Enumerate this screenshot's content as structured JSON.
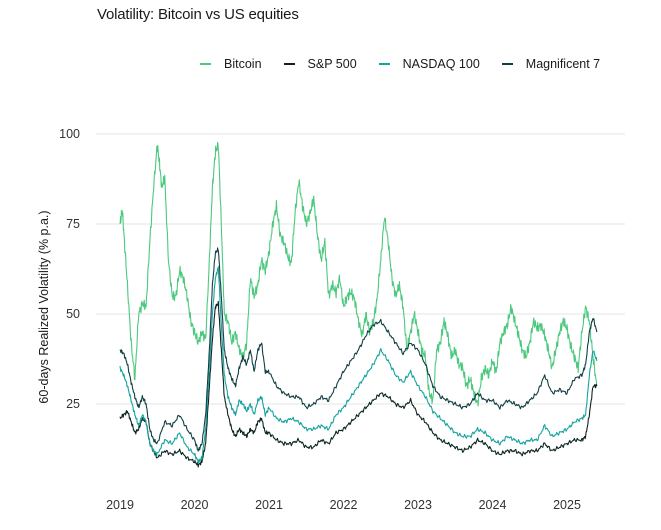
{
  "chart_data": {
    "type": "line",
    "title": "Volatility: Bitcoin vs US equities",
    "xlabel": "",
    "ylabel": "60-days Realized Volatility (% p.a.)",
    "xlim": [
      2019.0,
      2025.45
    ],
    "ylim": [
      0,
      100
    ],
    "grid": true,
    "legend_position": "top",
    "x_ticks": [
      2019,
      2020,
      2021,
      2022,
      2023,
      2024,
      2025
    ],
    "y_ticks": [
      25,
      50,
      75,
      100
    ],
    "series": [
      {
        "name": "Bitcoin",
        "color": "#4cc97e",
        "x": [
          2019.0,
          2019.03,
          2019.06,
          2019.1,
          2019.15,
          2019.2,
          2019.25,
          2019.3,
          2019.35,
          2019.4,
          2019.45,
          2019.5,
          2019.53,
          2019.56,
          2019.6,
          2019.65,
          2019.7,
          2019.75,
          2019.8,
          2019.85,
          2019.9,
          2019.95,
          2020.0,
          2020.05,
          2020.1,
          2020.15,
          2020.2,
          2020.24,
          2020.28,
          2020.32,
          2020.36,
          2020.4,
          2020.45,
          2020.5,
          2020.55,
          2020.6,
          2020.65,
          2020.7,
          2020.75,
          2020.8,
          2020.85,
          2020.9,
          2020.95,
          2021.0,
          2021.05,
          2021.1,
          2021.15,
          2021.2,
          2021.25,
          2021.3,
          2021.35,
          2021.4,
          2021.45,
          2021.5,
          2021.55,
          2021.6,
          2021.65,
          2021.7,
          2021.75,
          2021.8,
          2021.85,
          2021.9,
          2021.95,
          2022.0,
          2022.05,
          2022.1,
          2022.15,
          2022.2,
          2022.25,
          2022.3,
          2022.35,
          2022.4,
          2022.45,
          2022.5,
          2022.55,
          2022.6,
          2022.65,
          2022.7,
          2022.75,
          2022.8,
          2022.85,
          2022.9,
          2022.95,
          2023.0,
          2023.05,
          2023.1,
          2023.15,
          2023.2,
          2023.25,
          2023.3,
          2023.35,
          2023.4,
          2023.45,
          2023.5,
          2023.55,
          2023.6,
          2023.65,
          2023.7,
          2023.75,
          2023.8,
          2023.85,
          2023.9,
          2023.95,
          2024.0,
          2024.05,
          2024.1,
          2024.15,
          2024.2,
          2024.25,
          2024.3,
          2024.35,
          2024.4,
          2024.45,
          2024.5,
          2024.55,
          2024.6,
          2024.65,
          2024.7,
          2024.75,
          2024.8,
          2024.85,
          2024.9,
          2024.95,
          2025.0,
          2025.05,
          2025.1,
          2025.15,
          2025.2,
          2025.25,
          2025.3,
          2025.35,
          2025.4
        ],
        "values": [
          75,
          79,
          70,
          58,
          42,
          32,
          50,
          53,
          52,
          70,
          85,
          97,
          92,
          85,
          88,
          65,
          55,
          55,
          62,
          60,
          55,
          48,
          45,
          42,
          45,
          43,
          65,
          85,
          95,
          97,
          75,
          50,
          48,
          42,
          45,
          40,
          38,
          42,
          60,
          55,
          58,
          65,
          62,
          67,
          75,
          80,
          72,
          70,
          66,
          64,
          78,
          87,
          80,
          75,
          78,
          82,
          72,
          65,
          70,
          55,
          58,
          56,
          60,
          52,
          55,
          56,
          54,
          48,
          44,
          50,
          45,
          48,
          54,
          65,
          77,
          70,
          60,
          55,
          58,
          52,
          40,
          45,
          50,
          45,
          40,
          38,
          28,
          26,
          40,
          42,
          48,
          44,
          38,
          40,
          36,
          35,
          30,
          32,
          28,
          25,
          32,
          35,
          33,
          37,
          34,
          42,
          45,
          47,
          52,
          48,
          44,
          40,
          38,
          42,
          48,
          46,
          47,
          44,
          40,
          35,
          40,
          45,
          48,
          46,
          41,
          38,
          35,
          45,
          52,
          48,
          38,
          30
        ]
      },
      {
        "name": "S&P 500",
        "color": "#0c2523",
        "x": [
          2019.0,
          2019.05,
          2019.1,
          2019.15,
          2019.2,
          2019.25,
          2019.3,
          2019.35,
          2019.4,
          2019.45,
          2019.5,
          2019.6,
          2019.7,
          2019.8,
          2019.9,
          2020.0,
          2020.05,
          2020.1,
          2020.15,
          2020.2,
          2020.24,
          2020.28,
          2020.32,
          2020.36,
          2020.4,
          2020.45,
          2020.5,
          2020.55,
          2020.6,
          2020.65,
          2020.7,
          2020.75,
          2020.8,
          2020.85,
          2020.9,
          2020.95,
          2021.0,
          2021.1,
          2021.2,
          2021.3,
          2021.4,
          2021.5,
          2021.6,
          2021.7,
          2021.8,
          2021.9,
          2022.0,
          2022.1,
          2022.2,
          2022.3,
          2022.4,
          2022.5,
          2022.6,
          2022.7,
          2022.8,
          2022.9,
          2023.0,
          2023.1,
          2023.2,
          2023.3,
          2023.4,
          2023.5,
          2023.6,
          2023.7,
          2023.8,
          2023.9,
          2024.0,
          2024.1,
          2024.2,
          2024.3,
          2024.4,
          2024.5,
          2024.6,
          2024.7,
          2024.8,
          2024.9,
          2025.0,
          2025.1,
          2025.2,
          2025.25,
          2025.3,
          2025.35,
          2025.4
        ],
        "values": [
          21,
          22,
          23,
          20,
          17,
          18,
          21,
          20,
          14,
          12,
          10,
          12,
          11,
          12,
          10,
          9,
          8,
          9,
          14,
          30,
          43,
          52,
          53,
          40,
          27,
          22,
          18,
          16,
          18,
          17,
          16,
          18,
          17,
          20,
          21,
          17,
          17,
          15,
          14,
          14,
          15,
          13,
          13,
          15,
          14,
          17,
          18,
          20,
          22,
          24,
          26,
          28,
          27,
          25,
          24,
          26,
          22,
          20,
          17,
          15,
          14,
          13,
          12,
          13,
          15,
          14,
          12,
          11,
          12,
          12,
          11,
          12,
          12,
          14,
          12,
          13,
          14,
          15,
          15,
          16,
          22,
          30,
          30
        ]
      },
      {
        "name": "NASDAQ 100",
        "color": "#16a39e",
        "x": [
          2019.0,
          2019.05,
          2019.1,
          2019.15,
          2019.2,
          2019.25,
          2019.3,
          2019.35,
          2019.4,
          2019.45,
          2019.5,
          2019.6,
          2019.7,
          2019.8,
          2019.9,
          2020.0,
          2020.05,
          2020.1,
          2020.15,
          2020.2,
          2020.24,
          2020.28,
          2020.32,
          2020.36,
          2020.4,
          2020.45,
          2020.5,
          2020.55,
          2020.6,
          2020.65,
          2020.7,
          2020.75,
          2020.8,
          2020.85,
          2020.9,
          2020.95,
          2021.0,
          2021.1,
          2021.2,
          2021.3,
          2021.4,
          2021.5,
          2021.6,
          2021.7,
          2021.8,
          2021.9,
          2022.0,
          2022.1,
          2022.2,
          2022.3,
          2022.4,
          2022.5,
          2022.6,
          2022.7,
          2022.8,
          2022.9,
          2023.0,
          2023.1,
          2023.2,
          2023.3,
          2023.4,
          2023.5,
          2023.6,
          2023.7,
          2023.8,
          2023.9,
          2024.0,
          2024.1,
          2024.2,
          2024.3,
          2024.4,
          2024.5,
          2024.6,
          2024.7,
          2024.8,
          2024.9,
          2025.0,
          2025.1,
          2025.2,
          2025.25,
          2025.3,
          2025.35,
          2025.4
        ],
        "values": [
          35,
          33,
          30,
          26,
          22,
          19,
          22,
          20,
          14,
          12,
          11,
          15,
          14,
          17,
          13,
          11,
          9,
          10,
          18,
          35,
          50,
          60,
          63,
          47,
          33,
          27,
          24,
          22,
          26,
          25,
          23,
          25,
          22,
          26,
          27,
          22,
          24,
          21,
          20,
          21,
          20,
          18,
          18,
          19,
          18,
          22,
          24,
          27,
          30,
          33,
          36,
          40,
          37,
          33,
          31,
          34,
          30,
          27,
          23,
          21,
          19,
          17,
          16,
          16,
          18,
          17,
          15,
          14,
          16,
          15,
          14,
          15,
          15,
          19,
          16,
          17,
          18,
          20,
          21,
          22,
          33,
          40,
          37
        ]
      },
      {
        "name": "Magnificent 7",
        "color": "#123f44",
        "x": [
          2019.0,
          2019.05,
          2019.1,
          2019.15,
          2019.2,
          2019.25,
          2019.3,
          2019.35,
          2019.4,
          2019.45,
          2019.5,
          2019.6,
          2019.7,
          2019.8,
          2019.9,
          2020.0,
          2020.05,
          2020.1,
          2020.15,
          2020.2,
          2020.24,
          2020.28,
          2020.32,
          2020.36,
          2020.4,
          2020.45,
          2020.5,
          2020.55,
          2020.6,
          2020.65,
          2020.7,
          2020.75,
          2020.8,
          2020.85,
          2020.9,
          2020.95,
          2021.0,
          2021.1,
          2021.2,
          2021.3,
          2021.4,
          2021.5,
          2021.6,
          2021.7,
          2021.8,
          2021.9,
          2022.0,
          2022.1,
          2022.2,
          2022.3,
          2022.4,
          2022.5,
          2022.6,
          2022.7,
          2022.8,
          2022.9,
          2023.0,
          2023.1,
          2023.2,
          2023.3,
          2023.4,
          2023.5,
          2023.6,
          2023.7,
          2023.8,
          2023.9,
          2024.0,
          2024.1,
          2024.2,
          2024.3,
          2024.4,
          2024.5,
          2024.6,
          2024.7,
          2024.8,
          2024.9,
          2025.0,
          2025.1,
          2025.2,
          2025.25,
          2025.3,
          2025.35,
          2025.4
        ],
        "values": [
          40,
          39,
          36,
          31,
          27,
          24,
          27,
          25,
          18,
          15,
          14,
          20,
          19,
          22,
          18,
          15,
          12,
          14,
          22,
          40,
          58,
          67,
          68,
          55,
          40,
          35,
          32,
          30,
          35,
          38,
          36,
          40,
          34,
          40,
          42,
          34,
          34,
          30,
          28,
          27,
          27,
          24,
          25,
          27,
          26,
          30,
          34,
          37,
          40,
          44,
          47,
          48,
          45,
          42,
          39,
          42,
          40,
          36,
          30,
          27,
          26,
          25,
          24,
          25,
          28,
          26,
          26,
          24,
          26,
          25,
          24,
          26,
          28,
          33,
          28,
          29,
          28,
          32,
          33,
          36,
          45,
          49,
          45
        ]
      }
    ]
  }
}
